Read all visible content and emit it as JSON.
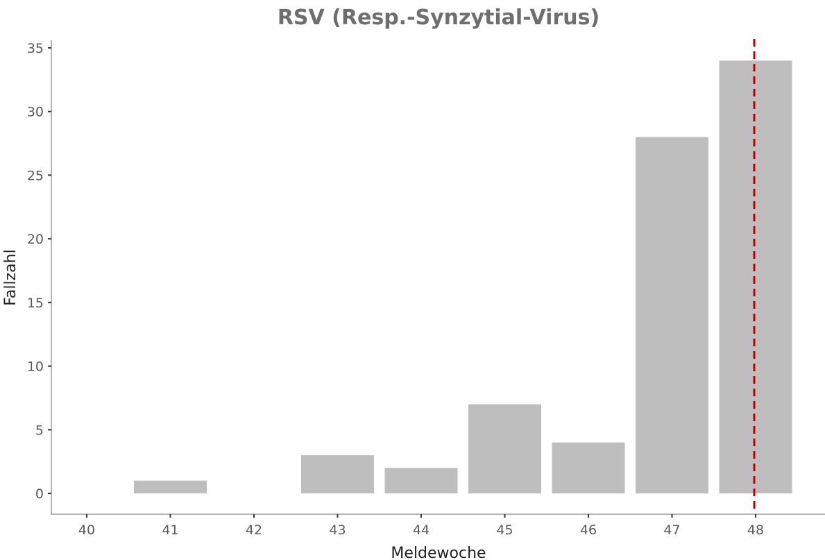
{
  "chart_data": {
    "type": "bar",
    "title": "RSV (Resp.-Synzytial-Virus)",
    "xlabel": "Meldewoche",
    "ylabel": "Fallzahl",
    "categories": [
      "40",
      "41",
      "42",
      "43",
      "44",
      "45",
      "46",
      "47",
      "48"
    ],
    "values": [
      0,
      1,
      0,
      3,
      2,
      7,
      4,
      28,
      34
    ],
    "ylim": [
      0,
      35
    ],
    "yticks": [
      "0",
      "5",
      "10",
      "15",
      "20",
      "25",
      "30",
      "35"
    ],
    "grid": false,
    "legend": "none",
    "reference_line": {
      "x": "48",
      "style": "dashed"
    },
    "colors": {
      "bar": "#bebebe",
      "reference_line": "#c00000",
      "axis": "#b3b3b3",
      "title": "#6e6e6e"
    }
  }
}
